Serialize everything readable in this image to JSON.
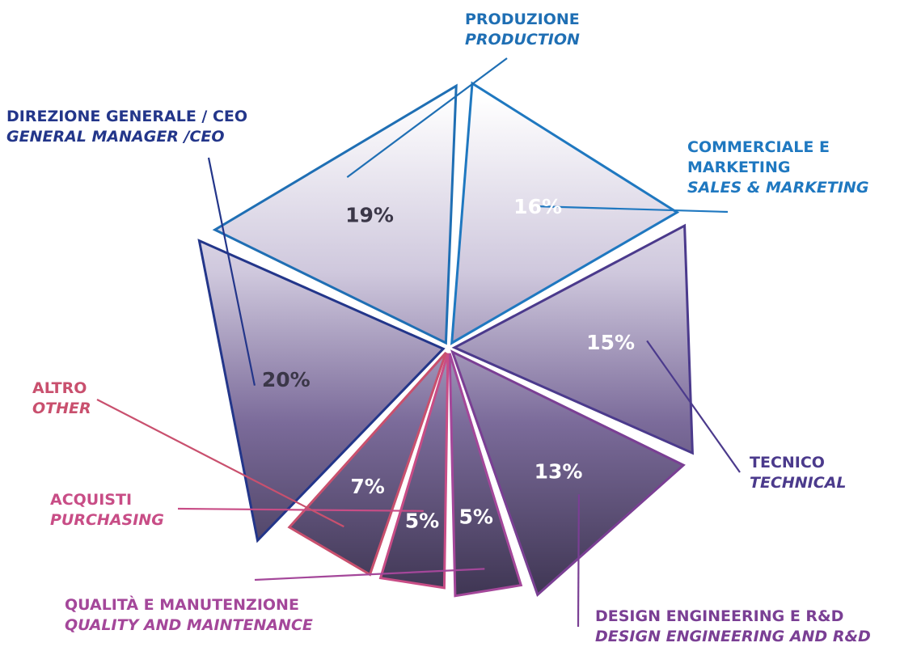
{
  "chart_data": {
    "type": "pie",
    "title": "",
    "categories": [
      "Produzione / Production",
      "Commerciale e Marketing / Sales & Marketing",
      "Tecnico / Technical",
      "Design Engineering e R&D / Design Engineering and R&D",
      "Qualità e Manutenzione / Quality and Maintenance",
      "Acquisti / Purchasing",
      "Altro / Other",
      "Direzione Generale / CEO / General Manager / CEO"
    ],
    "values": [
      19,
      16,
      15,
      13,
      5,
      5,
      7,
      20
    ],
    "unit": "%",
    "slices": [
      {
        "value": 19,
        "value_label": "19%",
        "label_it": "PRODUZIONE",
        "label_en": "PRODUCTION",
        "color": "#1f6fb4",
        "text_color": "#3b3748"
      },
      {
        "value": 16,
        "value_label": "16%",
        "label_it": "COMMERCIALE E MARKETING",
        "label_en": "SALES & MARKETING",
        "color": "#1f78c0",
        "text_color": "#ffffff"
      },
      {
        "value": 15,
        "value_label": "15%",
        "label_it": "TECNICO",
        "label_en": "TECHNICAL",
        "color": "#4b3a8c",
        "text_color": "#ffffff"
      },
      {
        "value": 13,
        "value_label": "13%",
        "label_it": "DESIGN ENGINEERING E R&D",
        "label_en": "DESIGN ENGINEERING AND R&D",
        "color": "#7a3f94",
        "text_color": "#ffffff"
      },
      {
        "value": 5,
        "value_label": "5%",
        "label_it": "QUALITÀ E MANUTENZIONE",
        "label_en": "QUALITY AND MAINTENANCE",
        "color": "#a4479a",
        "text_color": "#ffffff"
      },
      {
        "value": 5,
        "value_label": "5%",
        "label_it": "ACQUISTI",
        "label_en": "PURCHASING",
        "color": "#c84d86",
        "text_color": "#ffffff"
      },
      {
        "value": 7,
        "value_label": "7%",
        "label_it": "ALTRO",
        "label_en": "OTHER",
        "color": "#c9506e",
        "text_color": "#ffffff"
      },
      {
        "value": 20,
        "value_label": "20%",
        "label_it": "DIREZIONE GENERALE / CEO",
        "label_en": "GENERAL MANAGER /CEO",
        "color": "#23368a",
        "text_color": "#3b3748"
      }
    ],
    "labels": {
      "production": {
        "it": "PRODUZIONE",
        "en": "PRODUCTION"
      },
      "sales": {
        "it_line1": "COMMERCIALE E",
        "it_line2": "MARKETING",
        "en": "SALES & MARKETING"
      },
      "technical": {
        "it": "TECNICO",
        "en": "TECHNICAL"
      },
      "design": {
        "it": "DESIGN ENGINEERING E R&D",
        "en": "DESIGN ENGINEERING AND R&D"
      },
      "quality": {
        "it": "QUALITÀ E MANUTENZIONE",
        "en": "QUALITY AND MAINTENANCE"
      },
      "purchasing": {
        "it": "ACQUISTI",
        "en": "PURCHASING"
      },
      "other": {
        "it": "ALTRO",
        "en": "OTHER"
      },
      "ceo": {
        "it": "DIREZIONE GENERALE / CEO",
        "en": "GENERAL MANAGER /CEO"
      }
    },
    "legend": "none",
    "grid": false
  }
}
